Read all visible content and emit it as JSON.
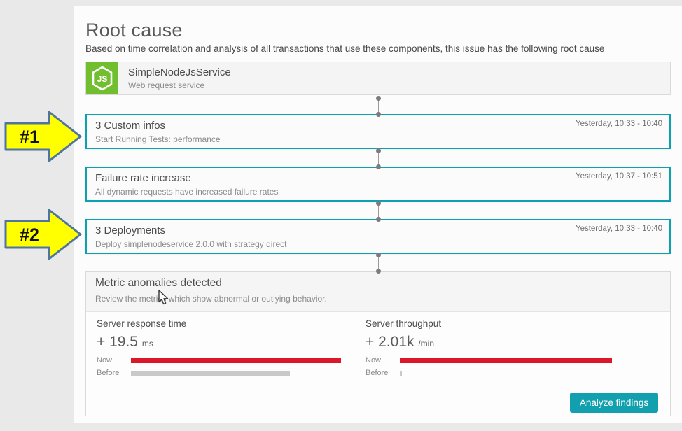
{
  "page": {
    "title": "Root cause",
    "subtitle": "Based on time correlation and analysis of all transactions that use these components, this issue has the following root cause"
  },
  "service_card": {
    "name": "SimpleNodeJsService",
    "type": "Web request service",
    "icon": "nodejs-icon",
    "icon_label": "JS"
  },
  "annotations": [
    {
      "label": "#1"
    },
    {
      "label": "#2"
    }
  ],
  "events": [
    {
      "title": "3 Custom infos",
      "subtitle": "Start Running Tests: performance",
      "time": "Yesterday, 10:33 - 10:40"
    },
    {
      "title": "Failure rate increase",
      "subtitle": "All dynamic requests have increased failure rates",
      "time": "Yesterday, 10:37 - 10:51"
    },
    {
      "title": "3 Deployments",
      "subtitle": "Deploy simplenodeservice 2.0.0 with strategy direct",
      "time": "Yesterday, 10:33 - 10:40"
    }
  ],
  "metrics_panel": {
    "title": "Metric anomalies detected",
    "subtitle": "Review the metrics which show abnormal or outlying behavior.",
    "metrics": [
      {
        "name": "Server response time",
        "delta_sign": "+",
        "delta_value": "19.5",
        "delta_unit": "ms",
        "now_label": "Now",
        "before_label": "Before",
        "now_pct": 99,
        "before_pct": 75
      },
      {
        "name": "Server throughput",
        "delta_sign": "+",
        "delta_value": "2.01k",
        "delta_unit": "/min",
        "now_label": "Now",
        "before_label": "Before",
        "now_pct": 100,
        "before_pct": 1
      }
    ],
    "analyze_button": "Analyze findings"
  },
  "colors": {
    "accent_teal": "#0ba1b1",
    "bar_now_red": "#dc172a",
    "bar_before_gray": "#c9c9c9",
    "button_teal": "#12a0ae",
    "nodejs_green": "#71bf2f",
    "arrow_yellow": "#ffff00",
    "arrow_border_blue": "#4f74a0"
  }
}
